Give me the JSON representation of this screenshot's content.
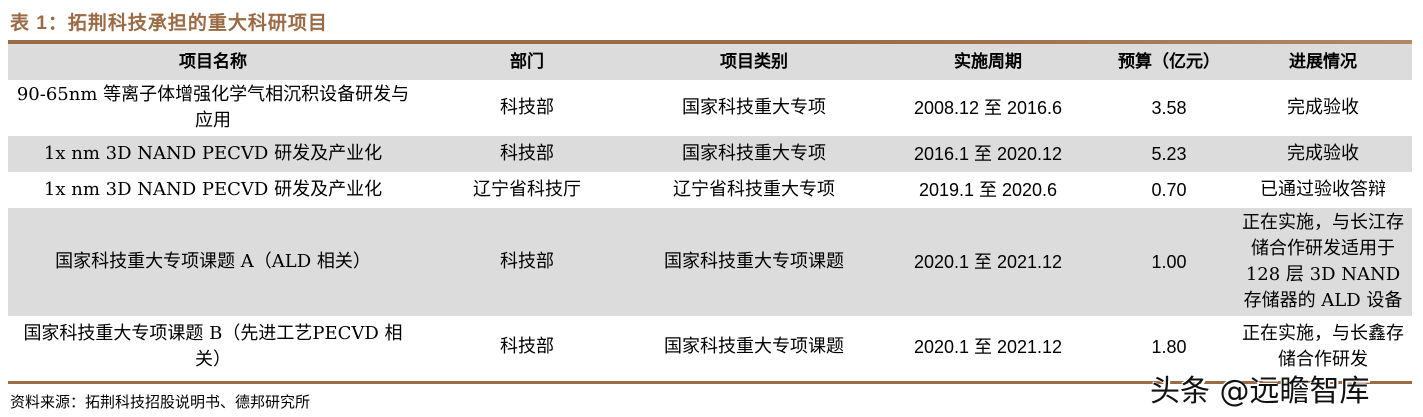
{
  "title": "表 1：拓荆科技承担的重大科研项目",
  "headers": [
    "项目名称",
    "部门",
    "项目类别",
    "实施周期",
    "预算（亿元）",
    "进展情况"
  ],
  "rows": [
    [
      "90-65nm 等离子体增强化学气相沉积设备研发与应用",
      "科技部",
      "国家科技重大专项",
      "2008.12 至 2016.6",
      "3.58",
      "完成验收"
    ],
    [
      "1x nm 3D NAND PECVD 研发及产业化",
      "科技部",
      "国家科技重大专项",
      "2016.1 至 2020.12",
      "5.23",
      "完成验收"
    ],
    [
      "1x nm 3D NAND PECVD 研发及产业化",
      "辽宁省科技厅",
      "辽宁省科技重大专项",
      "2019.1 至 2020.6",
      "0.70",
      "已通过验收答辩"
    ],
    [
      "国家科技重大专项课题 A（ALD 相关）",
      "科技部",
      "国家科技重大专项课题",
      "2020.1 至 2021.12",
      "1.00",
      "正在实施，与长江存储合作研发适用于128 层 3D NAND 存储器的 ALD 设备"
    ],
    [
      "国家科技重大专项课题 B（先进工艺PECVD 相关）",
      "科技部",
      "国家科技重大专项课题",
      "2020.1 至 2021.12",
      "1.80",
      "正在实施，与长鑫存储合作研发"
    ]
  ],
  "source": "资料来源：拓荆科技招股说明书、德邦研究所",
  "watermark": "头条 @远瞻智库",
  "colors": {
    "accent": "#9b6b45",
    "row_gray": "#dcdcdc"
  }
}
